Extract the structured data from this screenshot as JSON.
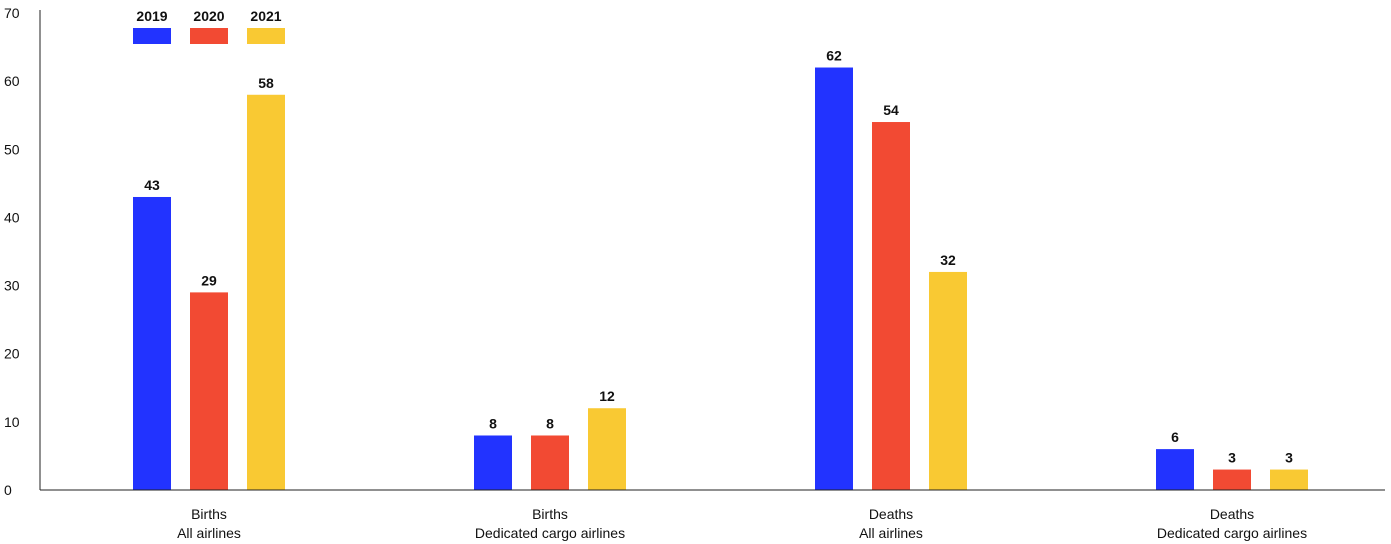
{
  "chart_data": {
    "type": "bar",
    "categories": [
      [
        "Births",
        "All airlines"
      ],
      [
        "Births",
        "Dedicated cargo airlines"
      ],
      [
        "Deaths",
        "All airlines"
      ],
      [
        "Deaths",
        "Dedicated cargo airlines"
      ]
    ],
    "series": [
      {
        "name": "2019",
        "color": "#2233FF",
        "values": [
          43,
          8,
          62,
          6
        ]
      },
      {
        "name": "2020",
        "color": "#F24A33",
        "values": [
          29,
          8,
          54,
          3
        ]
      },
      {
        "name": "2021",
        "color": "#F9C933",
        "values": [
          58,
          12,
          32,
          3
        ]
      }
    ],
    "ylim": [
      0,
      70
    ],
    "yticks": [
      0,
      10,
      20,
      30,
      40,
      50,
      60,
      70
    ],
    "grid": false,
    "legend": "top-left",
    "data_labels": true
  }
}
